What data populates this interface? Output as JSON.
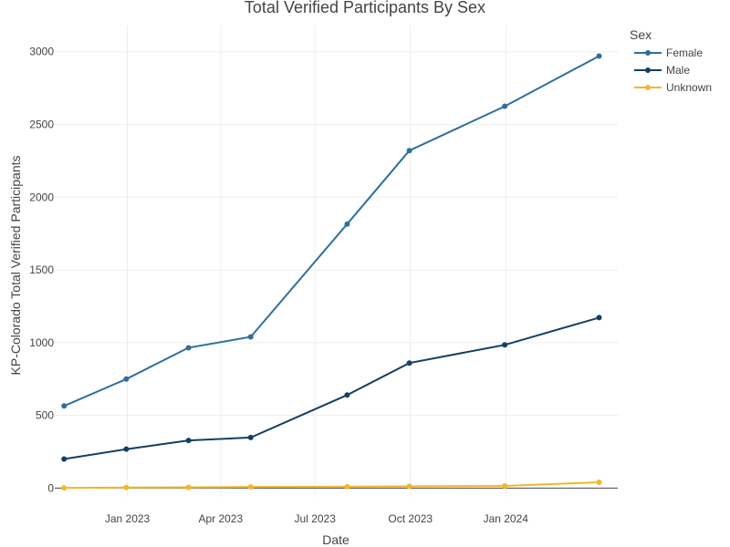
{
  "chart_data": {
    "type": "line",
    "title": "Total Verified Participants By Sex",
    "xlabel": "Date",
    "ylabel": "KP-Colorado Total Verified Participants",
    "legend_title": "Sex",
    "legend_position": "top-right",
    "grid": true,
    "xlim": [
      "2022-10-23",
      "2024-04-18"
    ],
    "ylim": [
      -60,
      3180
    ],
    "x_ticks": [
      {
        "date": "2023-01-01",
        "label": "Jan 2023"
      },
      {
        "date": "2023-04-01",
        "label": "Apr 2023"
      },
      {
        "date": "2023-07-01",
        "label": "Jul 2023"
      },
      {
        "date": "2023-10-01",
        "label": "Oct 2023"
      },
      {
        "date": "2024-01-01",
        "label": "Jan 2024"
      }
    ],
    "y_ticks": [
      0,
      500,
      1000,
      1500,
      2000,
      2500,
      3000
    ],
    "x": [
      "2022-11-01",
      "2022-12-31",
      "2023-03-01",
      "2023-04-30",
      "2023-08-01",
      "2023-09-30",
      "2023-12-31",
      "2024-03-31"
    ],
    "series": [
      {
        "name": "Female",
        "color": "#2e6f9e",
        "values": [
          565,
          750,
          965,
          1040,
          1815,
          2320,
          2625,
          2970
        ]
      },
      {
        "name": "Male",
        "color": "#163f62",
        "values": [
          200,
          268,
          328,
          348,
          640,
          860,
          985,
          1172
        ]
      },
      {
        "name": "Unknown",
        "color": "#f4b62a",
        "values": [
          2,
          4,
          6,
          8,
          10,
          13,
          15,
          40
        ]
      }
    ]
  }
}
